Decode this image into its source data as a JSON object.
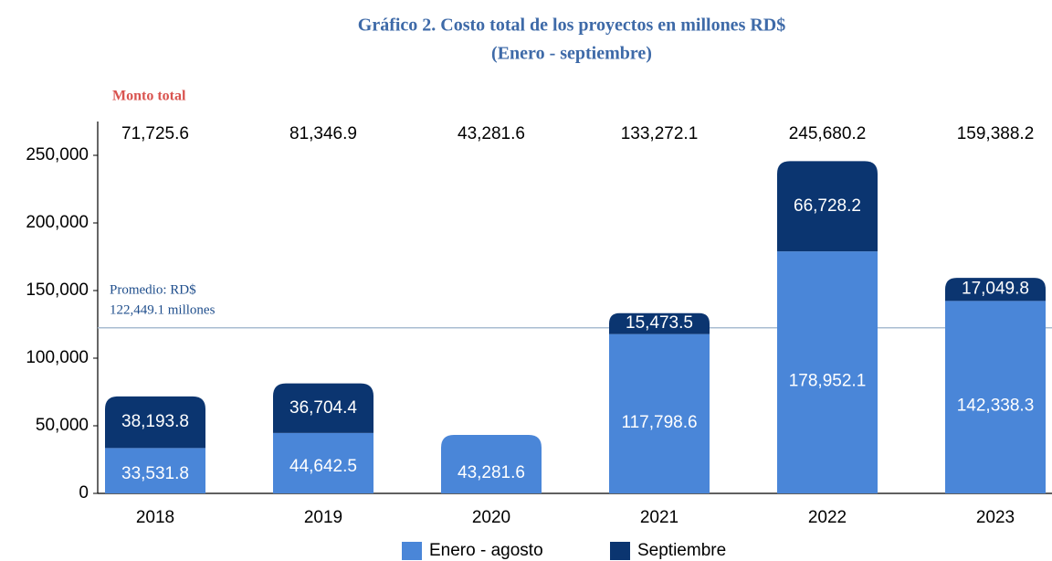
{
  "chart_data": {
    "type": "stacked_bar",
    "title": "Gráfico 2. Costo total de los proyectos en millones RD$",
    "subtitle": "(Enero - septiembre)",
    "categories": [
      "2018",
      "2019",
      "2020",
      "2021",
      "2022",
      "2023"
    ],
    "series": [
      {
        "name": "Enero - agosto",
        "color": "#4a86d8",
        "values": [
          33531.8,
          44642.5,
          43281.6,
          117798.6,
          178952.1,
          142338.3
        ],
        "value_labels": [
          "33,531.8",
          "44,642.5",
          "43,281.6",
          "117,798.6",
          "178,952.1",
          "142,338.3"
        ]
      },
      {
        "name": "Septiembre",
        "color": "#0b3570",
        "values": [
          38193.8,
          36704.4,
          null,
          15473.5,
          66728.2,
          17049.8
        ],
        "value_labels": [
          "38,193.8",
          "36,704.4",
          null,
          "15,473.5",
          "66,728.2",
          "17,049.8"
        ]
      }
    ],
    "totals_title": "Monto total",
    "totals": [
      71725.6,
      81346.9,
      43281.6,
      133272.1,
      245680.2,
      159388.2
    ],
    "totals_labels": [
      "71,725.6",
      "81,346.9",
      "43,281.6",
      "133,272.1",
      "245,680.2",
      "159,388.2"
    ],
    "average": 122449.1,
    "average_label": [
      "Promedio: RD$",
      "122,449.1 millones"
    ],
    "ylim": [
      0,
      275000
    ],
    "yticks": [
      0,
      {
        "value": 50000,
        "label": "50,000"
      },
      {
        "value": 100000,
        "label": "100,000"
      },
      {
        "value": 150000,
        "label": "150,000"
      },
      {
        "value": 200000,
        "label": "200,000"
      },
      {
        "value": 250000,
        "label": "250,000"
      }
    ],
    "grid": false
  }
}
